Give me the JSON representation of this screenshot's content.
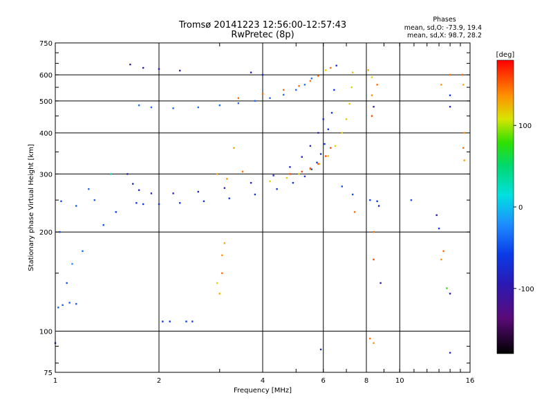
{
  "chart_data": {
    "type": "scatter",
    "title": "Tromsø 20141223 12:56:00-12:57:43",
    "subtitle": "RwPretec (8p)",
    "xlabel": "Frequency [MHz]",
    "ylabel": "Stationary phase Virtual Height [km]",
    "x_scale": "log",
    "y_scale": "log",
    "xlim": [
      1,
      16
    ],
    "ylim": [
      75,
      750
    ],
    "x_ticks": [
      1,
      2,
      4,
      6,
      8,
      10,
      16
    ],
    "y_ticks": [
      75,
      100,
      200,
      300,
      400,
      500,
      600,
      750
    ],
    "grid": true,
    "phase_stats": {
      "heading": "Phases",
      "o_line": "mean, sd,O: -73.9, 19.4",
      "x_line": "mean, sd,X:  98.7, 28.2"
    },
    "colorbar": {
      "label": "[deg]",
      "ticks": [
        100,
        0,
        -100
      ],
      "range": [
        -180,
        180
      ],
      "colormap": "rainbow (black-purple-blue-cyan-green-yellow-red)"
    },
    "traces": [
      {
        "x": [
          1.72,
          1.8,
          2.0,
          2.3,
          2.7,
          3.2,
          3.8,
          4.4,
          4.9,
          5.3,
          5.55,
          5.75,
          5.9,
          6.05,
          6.2,
          6.35,
          6.45,
          6.55
        ],
        "y": [
          245,
          243,
          243,
          245,
          248,
          253,
          260,
          270,
          282,
          295,
          310,
          325,
          345,
          370,
          410,
          460,
          540,
          640
        ],
        "phase": -100
      },
      {
        "x": [
          1.62,
          1.68,
          1.75,
          1.9,
          2.2,
          2.6,
          3.1,
          3.7,
          4.3,
          4.8,
          5.2,
          5.5,
          5.8,
          6.0
        ],
        "y": [
          300,
          280,
          268,
          262,
          262,
          265,
          272,
          282,
          297,
          315,
          338,
          365,
          400,
          440
        ],
        "phase": -110
      },
      {
        "x": [
          4.2,
          4.7,
          5.1,
          5.5,
          5.85,
          6.2,
          6.5,
          6.8,
          7.0,
          7.15,
          7.25,
          7.3
        ],
        "y": [
          285,
          292,
          300,
          310,
          322,
          340,
          365,
          400,
          440,
          490,
          550,
          610
        ],
        "phase": 110
      },
      {
        "x": [
          4.8,
          5.2,
          5.5,
          5.8,
          6.1,
          6.3
        ],
        "y": [
          300,
          305,
          312,
          322,
          340,
          360
        ],
        "phase": 160
      },
      {
        "x": [
          1.75,
          1.9,
          2.2,
          2.6,
          3.0,
          3.4,
          3.8,
          4.2,
          4.6,
          5.0,
          5.3,
          5.55
        ],
        "y": [
          485,
          478,
          475,
          478,
          485,
          492,
          500,
          510,
          522,
          540,
          560,
          585
        ],
        "phase": -80
      },
      {
        "x": [
          3.4,
          4.0,
          4.6,
          5.1,
          5.5,
          5.8
        ],
        "y": [
          510,
          525,
          540,
          555,
          575,
          595
        ],
        "phase": 150
      },
      {
        "x": [
          1.65,
          1.8,
          2.0,
          2.3
        ],
        "y": [
          645,
          630,
          625,
          618
        ],
        "phase": -120
      },
      {
        "x": [
          1.02,
          1.05,
          1.1,
          1.15
        ],
        "y": [
          118,
          120,
          122,
          121
        ],
        "phase": -85
      }
    ],
    "points": [
      {
        "x": 1.04,
        "y": 248,
        "phase": -90
      },
      {
        "x": 1.15,
        "y": 240,
        "phase": -85
      },
      {
        "x": 1.25,
        "y": 270,
        "phase": -80
      },
      {
        "x": 1.3,
        "y": 250,
        "phase": -85
      },
      {
        "x": 1.38,
        "y": 210,
        "phase": -90
      },
      {
        "x": 1.45,
        "y": 300,
        "phase": -20
      },
      {
        "x": 1.5,
        "y": 230,
        "phase": -95
      },
      {
        "x": 1.08,
        "y": 140,
        "phase": -90
      },
      {
        "x": 1.12,
        "y": 160,
        "phase": -70
      },
      {
        "x": 1.2,
        "y": 175,
        "phase": -80
      },
      {
        "x": 1.03,
        "y": 200,
        "phase": -90
      },
      {
        "x": 1.0,
        "y": 92,
        "phase": -100
      },
      {
        "x": 2.05,
        "y": 107,
        "phase": -100
      },
      {
        "x": 2.15,
        "y": 107,
        "phase": -100
      },
      {
        "x": 2.4,
        "y": 107,
        "phase": -95
      },
      {
        "x": 2.5,
        "y": 107,
        "phase": -95
      },
      {
        "x": 3.0,
        "y": 130,
        "phase": 120
      },
      {
        "x": 3.05,
        "y": 150,
        "phase": 150
      },
      {
        "x": 3.05,
        "y": 170,
        "phase": 140
      },
      {
        "x": 3.1,
        "y": 185,
        "phase": 130
      },
      {
        "x": 2.95,
        "y": 300,
        "phase": 130
      },
      {
        "x": 3.3,
        "y": 360,
        "phase": 130
      },
      {
        "x": 3.5,
        "y": 305,
        "phase": 150
      },
      {
        "x": 3.15,
        "y": 290,
        "phase": 140
      },
      {
        "x": 6.8,
        "y": 275,
        "phase": -90
      },
      {
        "x": 7.3,
        "y": 260,
        "phase": -90
      },
      {
        "x": 8.2,
        "y": 250,
        "phase": -95
      },
      {
        "x": 8.6,
        "y": 248,
        "phase": -100
      },
      {
        "x": 10.8,
        "y": 250,
        "phase": -90
      },
      {
        "x": 12.8,
        "y": 225,
        "phase": -120
      },
      {
        "x": 13.0,
        "y": 205,
        "phase": -100
      },
      {
        "x": 8.4,
        "y": 200,
        "phase": 150
      },
      {
        "x": 8.8,
        "y": 140,
        "phase": -120
      },
      {
        "x": 8.4,
        "y": 165,
        "phase": 160
      },
      {
        "x": 13.7,
        "y": 135,
        "phase": 30
      },
      {
        "x": 13.2,
        "y": 165,
        "phase": 140
      },
      {
        "x": 13.4,
        "y": 175,
        "phase": 150
      },
      {
        "x": 14.0,
        "y": 130,
        "phase": -120
      },
      {
        "x": 5.9,
        "y": 88,
        "phase": -110
      },
      {
        "x": 8.2,
        "y": 95,
        "phase": 150
      },
      {
        "x": 8.4,
        "y": 92,
        "phase": 140
      },
      {
        "x": 14.0,
        "y": 86,
        "phase": -110
      },
      {
        "x": 8.3,
        "y": 590,
        "phase": 110
      },
      {
        "x": 8.1,
        "y": 620,
        "phase": 130
      },
      {
        "x": 8.6,
        "y": 560,
        "phase": 150
      },
      {
        "x": 8.3,
        "y": 520,
        "phase": 140
      },
      {
        "x": 8.4,
        "y": 480,
        "phase": -120
      },
      {
        "x": 8.3,
        "y": 450,
        "phase": 160
      },
      {
        "x": 14.0,
        "y": 600,
        "phase": 150
      },
      {
        "x": 14.0,
        "y": 520,
        "phase": -100
      },
      {
        "x": 14.0,
        "y": 480,
        "phase": -110
      },
      {
        "x": 13.2,
        "y": 560,
        "phase": 140
      },
      {
        "x": 15.2,
        "y": 600,
        "phase": 150
      },
      {
        "x": 15.3,
        "y": 560,
        "phase": 130
      },
      {
        "x": 15.4,
        "y": 400,
        "phase": 140
      },
      {
        "x": 15.3,
        "y": 360,
        "phase": 150
      },
      {
        "x": 15.4,
        "y": 330,
        "phase": 130
      },
      {
        "x": 6.1,
        "y": 620,
        "phase": 110
      },
      {
        "x": 6.3,
        "y": 630,
        "phase": 150
      },
      {
        "x": 4.0,
        "y": 600,
        "phase": -110
      },
      {
        "x": 3.7,
        "y": 610,
        "phase": -120
      },
      {
        "x": 7.4,
        "y": 230,
        "phase": 150
      },
      {
        "x": 8.7,
        "y": 240,
        "phase": -110
      },
      {
        "x": 2.95,
        "y": 140,
        "phase": 110
      }
    ]
  }
}
